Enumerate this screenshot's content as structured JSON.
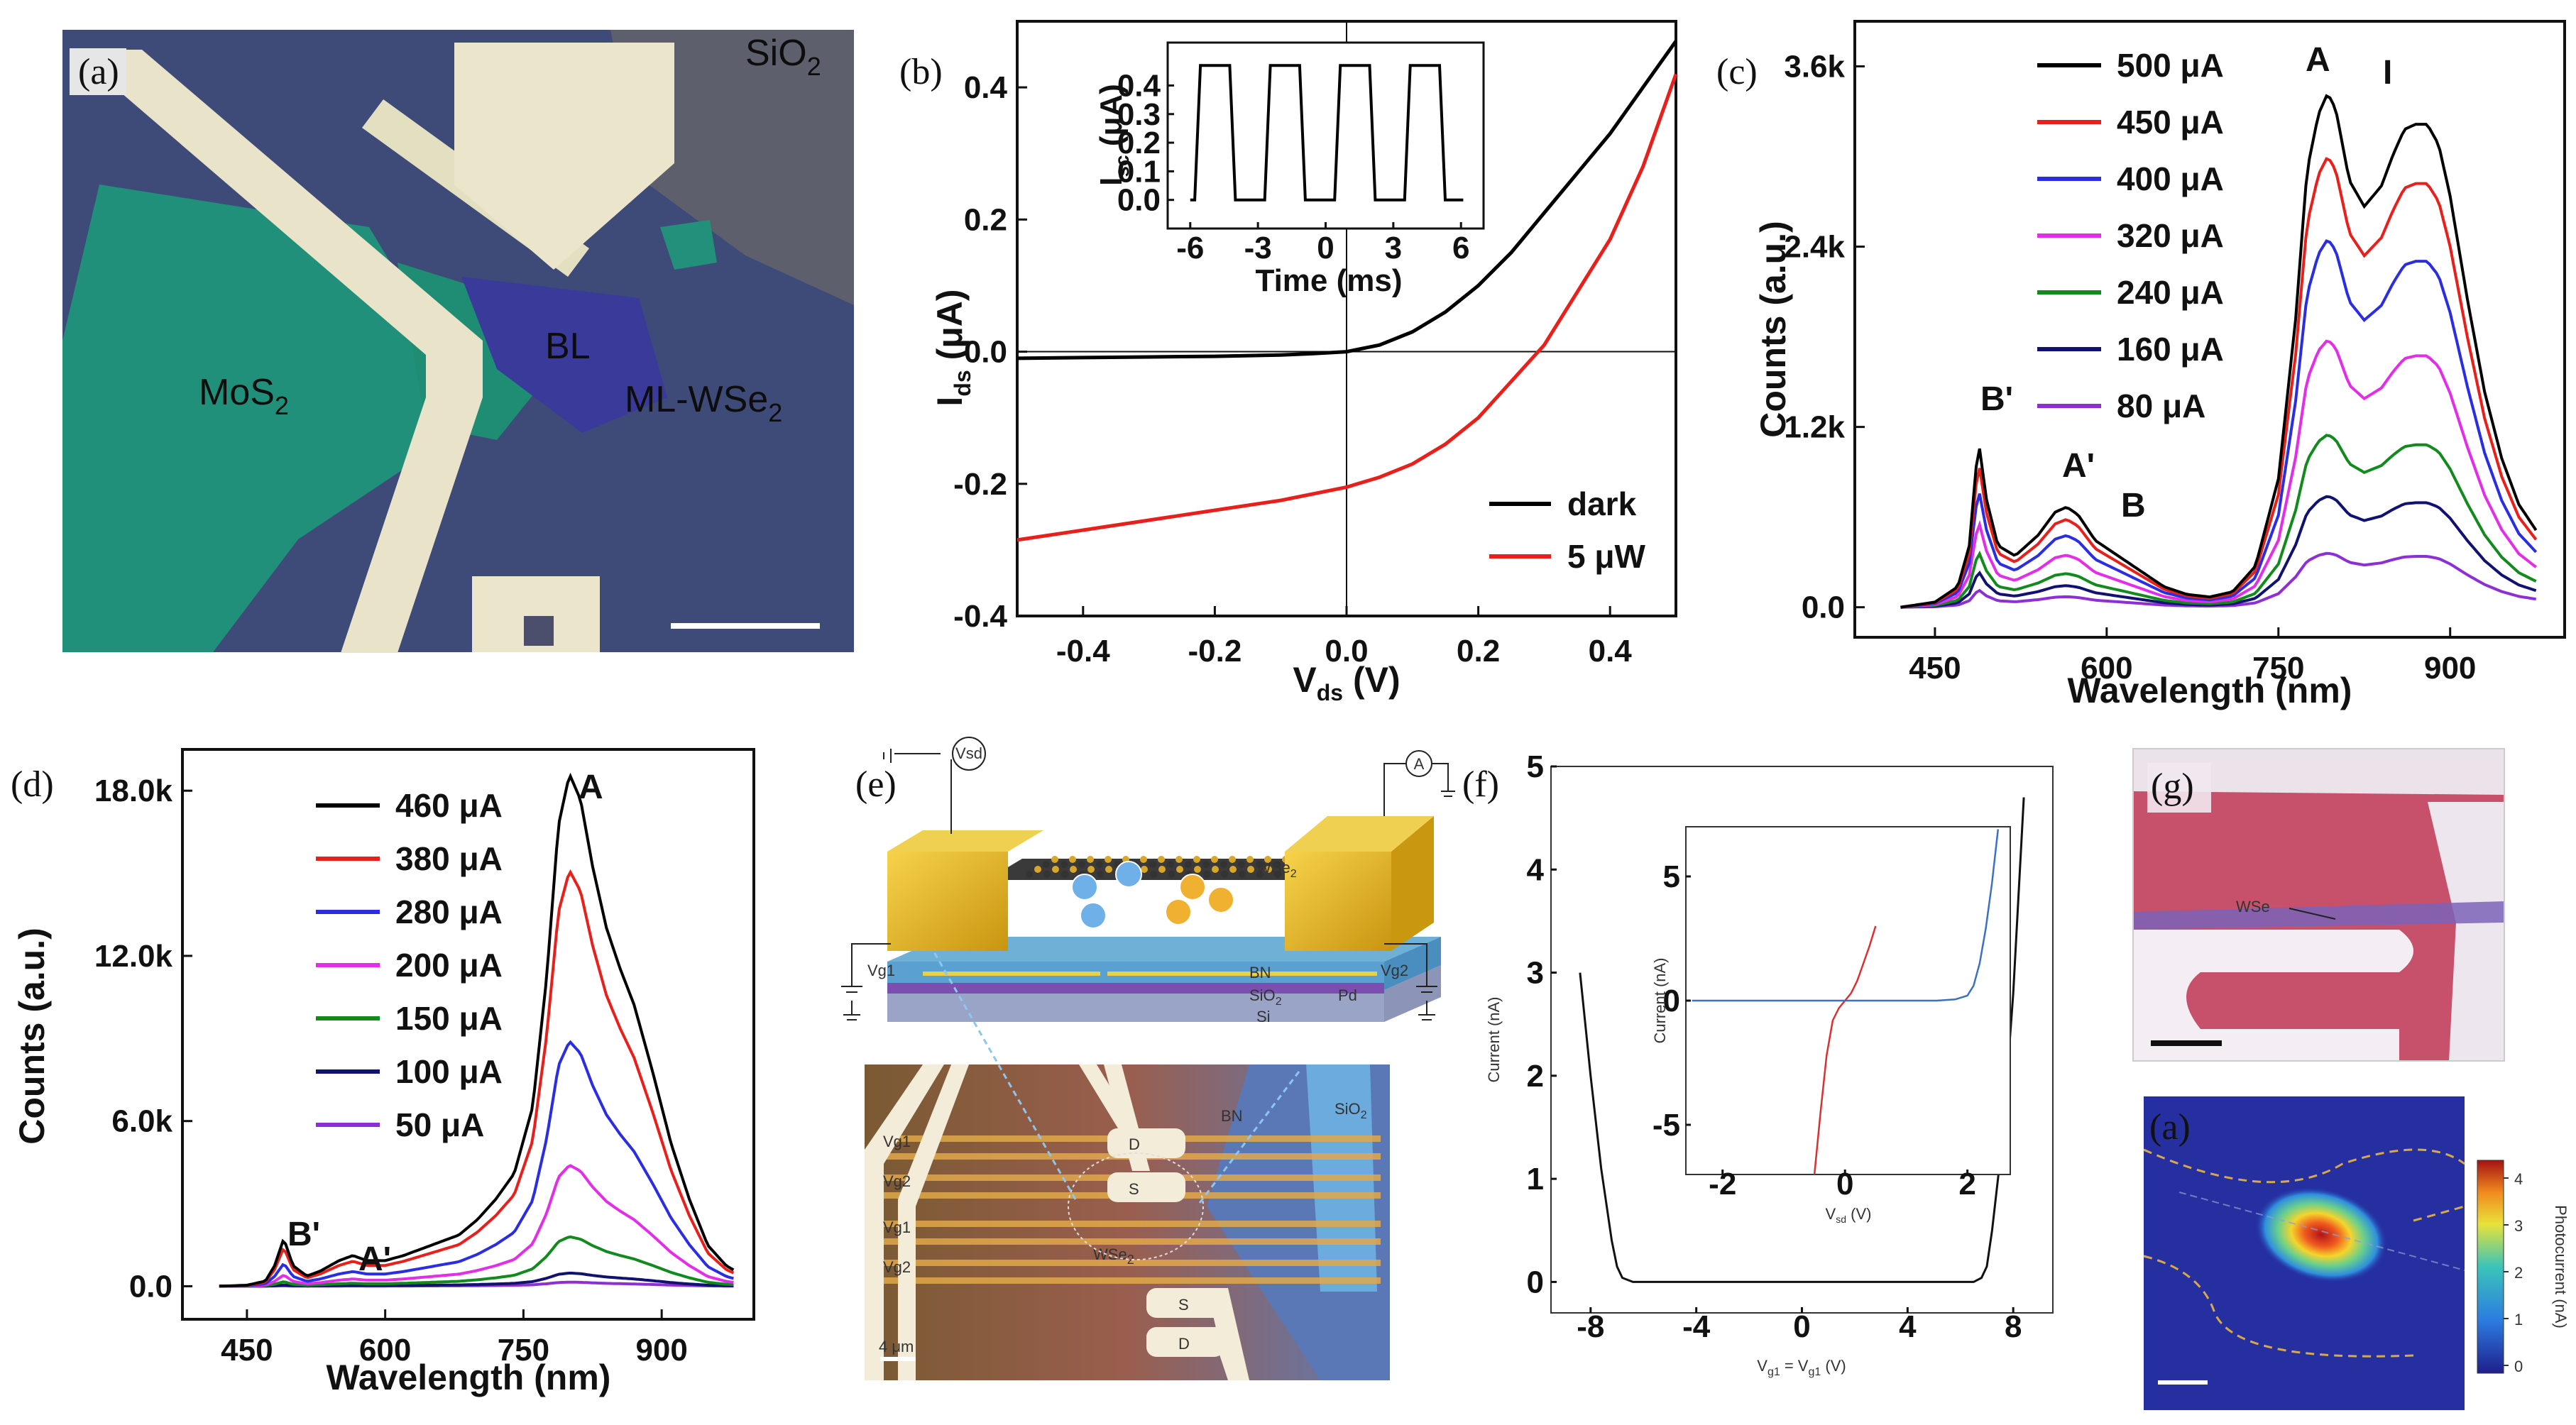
{
  "panel_labels": {
    "a": "(a)",
    "b": "(b)",
    "c": "(c)",
    "d": "(d)",
    "e": "(e)",
    "f": "(f)",
    "g": "(g)",
    "g2": "(a)"
  },
  "panel_a": {
    "labels": [
      "SiO",
      "MoS",
      "BL",
      "ML-WSe"
    ],
    "sub": "2"
  },
  "panel_e": {
    "probe_vsd": "Vsd",
    "probe_a": "A",
    "wse2": "WSe",
    "bn": "BN",
    "sio2": "SiO",
    "si": "Si",
    "pd": "Pd",
    "vg1": "Vg1",
    "vg2": "Vg2",
    "sio2_photo": "SiO",
    "bn_photo": "BN",
    "d": "D",
    "s": "S",
    "scale": "4 μm",
    "sub2": "2"
  },
  "panel_g": {
    "wse2": "WSe",
    "colorbar_label": "Photocurrent (nA)",
    "colorbar_ticks": [
      "4",
      "3",
      "2",
      "1",
      "0"
    ]
  },
  "chart_data": [
    {
      "type": "line",
      "id": "b",
      "xlabel": "V",
      "xlabel_sub": "ds",
      "xlabel_unit": " (V)",
      "ylabel": "I",
      "ylabel_sub": "ds",
      "ylabel_unit": " (μA)",
      "xlim": [
        -0.5,
        0.5
      ],
      "ylim": [
        -0.4,
        0.5
      ],
      "xticks": [
        -0.4,
        -0.2,
        0.0,
        0.2,
        0.4
      ],
      "xtick_labels": [
        "-0.4",
        "-0.2",
        "0.0",
        "0.2",
        "0.4"
      ],
      "yticks": [
        -0.4,
        -0.2,
        0.0,
        0.2,
        0.4
      ],
      "ytick_labels": [
        "-0.4",
        "-0.2",
        "0.0",
        "0.2",
        "0.4"
      ],
      "series": [
        {
          "name": "dark",
          "color": "#000000",
          "x": [
            -0.5,
            -0.4,
            -0.3,
            -0.2,
            -0.1,
            -0.05,
            0.0,
            0.05,
            0.1,
            0.15,
            0.2,
            0.25,
            0.3,
            0.35,
            0.4,
            0.45,
            0.5
          ],
          "y": [
            -0.01,
            -0.009,
            -0.008,
            -0.007,
            -0.005,
            -0.003,
            0.0,
            0.01,
            0.03,
            0.06,
            0.1,
            0.15,
            0.21,
            0.27,
            0.33,
            0.4,
            0.47
          ]
        },
        {
          "name": "5 μW",
          "color": "#e8201c",
          "x": [
            -0.5,
            -0.4,
            -0.3,
            -0.2,
            -0.1,
            0.0,
            0.05,
            0.1,
            0.15,
            0.2,
            0.25,
            0.3,
            0.35,
            0.4,
            0.45,
            0.5
          ],
          "y": [
            -0.285,
            -0.27,
            -0.255,
            -0.24,
            -0.225,
            -0.205,
            -0.19,
            -0.17,
            -0.14,
            -0.1,
            -0.045,
            0.01,
            0.09,
            0.17,
            0.28,
            0.42
          ]
        }
      ],
      "inset": {
        "xlabel": "Time (ms)",
        "ylabel": "I",
        "ylabel_sub": "sc",
        "ylabel_unit": " (μA)",
        "xlim": [
          -7,
          7
        ],
        "ylim": [
          -0.1,
          0.55
        ],
        "xticks": [
          -6,
          -3,
          0,
          3,
          6
        ],
        "xtick_labels": [
          "-6",
          "-3",
          "0",
          "3",
          "6"
        ],
        "yticks": [
          0.0,
          0.1,
          0.2,
          0.3,
          0.4
        ],
        "ytick_labels": [
          "0.0",
          "0.1",
          "0.2",
          "0.3",
          "0.4"
        ],
        "period": 3.1,
        "high": 0.47,
        "low": 0.0,
        "first_rise": -5.8
      }
    },
    {
      "type": "line",
      "id": "c",
      "xlabel": "Wavelength (nm)",
      "ylabel": "Counts (a.u.)",
      "xlim": [
        380,
        1000
      ],
      "ylim": [
        -200,
        3900
      ],
      "xticks": [
        450,
        600,
        750,
        900
      ],
      "xtick_labels": [
        "450",
        "600",
        "750",
        "900"
      ],
      "yticks": [
        0,
        1200,
        2400,
        3600
      ],
      "ytick_labels": [
        "0.0",
        "1.2k",
        "2.4k",
        "3.6k"
      ],
      "peak_labels": [
        "A",
        "I",
        "B'",
        "A'",
        "B"
      ],
      "shape": {
        "wavelength": [
          420,
          450,
          470,
          480,
          488,
          495,
          505,
          520,
          540,
          555,
          565,
          575,
          590,
          610,
          630,
          650,
          670,
          690,
          710,
          730,
          750,
          765,
          775,
          785,
          793,
          800,
          812,
          825,
          840,
          850,
          860,
          870,
          880,
          890,
          900,
          915,
          930,
          945,
          960,
          975
        ],
        "norm": [
          0.0,
          0.01,
          0.04,
          0.12,
          0.325,
          0.21,
          0.12,
          0.1,
          0.14,
          0.185,
          0.195,
          0.18,
          0.13,
          0.1,
          0.07,
          0.04,
          0.025,
          0.02,
          0.03,
          0.08,
          0.25,
          0.56,
          0.85,
          0.96,
          1.0,
          0.97,
          0.83,
          0.78,
          0.82,
          0.88,
          0.93,
          0.94,
          0.94,
          0.9,
          0.8,
          0.6,
          0.42,
          0.29,
          0.2,
          0.15
        ]
      },
      "series": [
        {
          "name": "500 μA",
          "color": "#000000",
          "peak": 3420
        },
        {
          "name": "450 μA",
          "color": "#e8201c",
          "peak": 3000
        },
        {
          "name": "400 μA",
          "color": "#2a2ee0",
          "peak": 2450
        },
        {
          "name": "320 μA",
          "color": "#e22ee6",
          "peak": 1780
        },
        {
          "name": "240 μA",
          "color": "#138a1e",
          "peak": 1150
        },
        {
          "name": "160 μA",
          "color": "#111170",
          "peak": 740
        },
        {
          "name": "80 μA",
          "color": "#8e2fd3",
          "peak": 360
        }
      ]
    },
    {
      "type": "line",
      "id": "d",
      "xlabel": "Wavelength (nm)",
      "ylabel": "Counts (a.u.)",
      "xlim": [
        380,
        1000
      ],
      "ylim": [
        -1200,
        19500
      ],
      "xticks": [
        450,
        600,
        750,
        900
      ],
      "xtick_labels": [
        "450",
        "600",
        "750",
        "900"
      ],
      "yticks": [
        0,
        6000,
        12000,
        18000
      ],
      "ytick_labels": [
        "0.0",
        "6.0k",
        "12.0k",
        "18.0k"
      ],
      "peak_labels": [
        "A",
        "B'",
        "A'"
      ],
      "shape": {
        "wavelength": [
          420,
          450,
          470,
          480,
          490,
          500,
          515,
          530,
          550,
          565,
          580,
          600,
          620,
          650,
          680,
          700,
          720,
          740,
          760,
          775,
          788,
          800,
          812,
          825,
          840,
          855,
          870,
          890,
          910,
          930,
          950,
          970,
          980
        ],
        "norm": [
          0.0,
          0.002,
          0.01,
          0.04,
          0.093,
          0.04,
          0.02,
          0.03,
          0.05,
          0.06,
          0.05,
          0.05,
          0.06,
          0.08,
          0.1,
          0.13,
          0.17,
          0.22,
          0.35,
          0.6,
          0.9,
          1.0,
          0.95,
          0.82,
          0.7,
          0.62,
          0.55,
          0.42,
          0.28,
          0.17,
          0.08,
          0.04,
          0.03
        ]
      },
      "series": [
        {
          "name": "460 μA",
          "color": "#000000",
          "peak": 18600
        },
        {
          "name": "380 μA",
          "color": "#e8201c",
          "peak": 15100
        },
        {
          "name": "280 μA",
          "color": "#2a2ee0",
          "peak": 8900
        },
        {
          "name": "200 μA",
          "color": "#e22ee6",
          "peak": 4400
        },
        {
          "name": "150 μA",
          "color": "#138a1e",
          "peak": 1800
        },
        {
          "name": "100 μA",
          "color": "#111170",
          "peak": 480
        },
        {
          "name": "50 μA",
          "color": "#8e2fd3",
          "peak": 150
        }
      ]
    },
    {
      "type": "line",
      "id": "f",
      "xlabel": "V",
      "xlabel_mid": "g1",
      "xlabel_eq": " = V",
      "xlabel_sub": "g1",
      "xlabel_unit": " (V)",
      "ylabel": "Current (nA)",
      "xlim": [
        -9.5,
        9.5
      ],
      "ylim": [
        -0.3,
        5
      ],
      "xticks": [
        -8,
        -4,
        0,
        4,
        8
      ],
      "xtick_labels": [
        "-8",
        "-4",
        "0",
        "4",
        "8"
      ],
      "yticks": [
        0,
        1,
        2,
        3,
        4,
        5
      ],
      "ytick_labels": [
        "0",
        "1",
        "2",
        "3",
        "4",
        "5"
      ],
      "series": [
        {
          "name": "I",
          "color": "#111111",
          "x": [
            -8.4,
            -8.0,
            -7.6,
            -7.2,
            -7.0,
            -6.8,
            -6.4,
            -5,
            0,
            5,
            6.5,
            6.8,
            7.0,
            7.2,
            7.6,
            8.0,
            8.4
          ],
          "y": [
            3.0,
            2.0,
            1.1,
            0.4,
            0.15,
            0.04,
            0.0,
            0.0,
            0.0,
            0.0,
            0.0,
            0.04,
            0.15,
            0.5,
            1.4,
            2.8,
            4.7
          ]
        }
      ],
      "inset": {
        "xlabel": "V",
        "xlabel_sub": "sd",
        "xlabel_unit": " (V)",
        "ylabel": "Current (nA)",
        "xlim": [
          -2.6,
          2.7
        ],
        "ylim": [
          -7,
          7
        ],
        "xticks": [
          -2,
          0,
          2
        ],
        "xtick_labels": [
          "-2",
          "0",
          "2"
        ],
        "yticks": [
          -5,
          0,
          5
        ],
        "ytick_labels": [
          "-5",
          "0",
          "5"
        ],
        "series": [
          {
            "name": "red",
            "color": "#d93030",
            "x": [
              -0.5,
              -0.4,
              -0.3,
              -0.2,
              -0.1,
              0.0,
              0.1,
              0.2,
              0.3,
              0.4,
              0.5
            ],
            "y": [
              -7,
              -4.5,
              -2.2,
              -0.8,
              -0.3,
              0.0,
              0.3,
              0.8,
              1.5,
              2.2,
              3.0
            ]
          },
          {
            "name": "blue",
            "color": "#3d6fc4",
            "x": [
              -2.5,
              0,
              1.5,
              1.8,
              2.0,
              2.1,
              2.2,
              2.3,
              2.4,
              2.5
            ],
            "y": [
              0,
              0,
              0,
              0.05,
              0.2,
              0.6,
              1.5,
              2.9,
              4.7,
              6.9
            ]
          }
        ]
      }
    }
  ]
}
